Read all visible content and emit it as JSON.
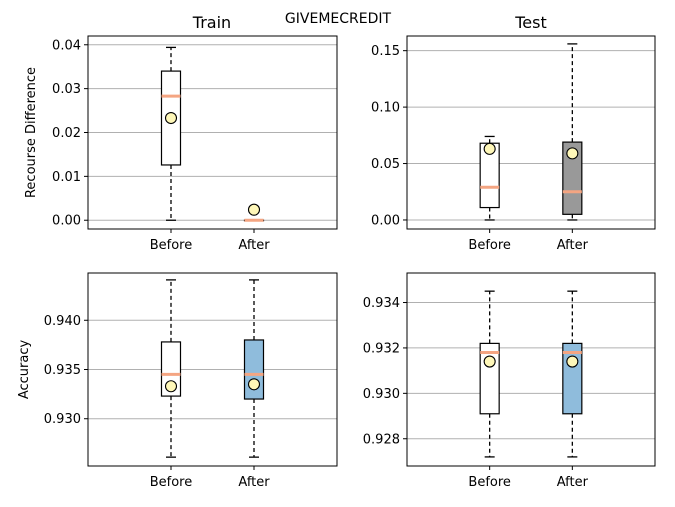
{
  "figure": {
    "suptitle": "GIVEMECREDIT",
    "col_titles": [
      "Train",
      "Test"
    ],
    "row_ylabels": [
      "Recourse Difference",
      "Accuracy"
    ]
  },
  "colors": {
    "median": "#f4a582",
    "mean_marker_fill": "#fef7b8",
    "grid": "#b0b0b0",
    "box_default": "#ffffff",
    "box_blue": "#8fbcdc",
    "box_gray": "#999999"
  },
  "chart_data": [
    {
      "type": "box",
      "title": "Train",
      "ylabel": "Recourse Difference",
      "xlabel": "",
      "ylim": [
        -0.002,
        0.042
      ],
      "yticks": [
        0.0,
        0.01,
        0.02,
        0.03,
        0.04
      ],
      "ytick_labels": [
        "0.00",
        "0.01",
        "0.02",
        "0.03",
        "0.04"
      ],
      "grid": "y",
      "categories": [
        "Before",
        "After"
      ],
      "boxes": [
        {
          "whislo": 0.0,
          "q1": 0.0126,
          "med": 0.0283,
          "q3": 0.034,
          "whishi": 0.0394,
          "mean": 0.0233,
          "fill": "#ffffff"
        },
        {
          "whislo": 0.0,
          "q1": 0.0,
          "med": 0.0,
          "q3": 0.0,
          "whishi": 0.0,
          "mean": 0.0024,
          "fill": "#ffffff"
        }
      ]
    },
    {
      "type": "box",
      "title": "Test",
      "ylabel": "",
      "xlabel": "",
      "ylim": [
        -0.008,
        0.163
      ],
      "yticks": [
        0.0,
        0.05,
        0.1,
        0.15
      ],
      "ytick_labels": [
        "0.00",
        "0.05",
        "0.10",
        "0.15"
      ],
      "grid": "y",
      "categories": [
        "Before",
        "After"
      ],
      "boxes": [
        {
          "whislo": 0.0,
          "q1": 0.011,
          "med": 0.029,
          "q3": 0.068,
          "whishi": 0.074,
          "mean": 0.063,
          "fill": "#ffffff"
        },
        {
          "whislo": 0.0,
          "q1": 0.005,
          "med": 0.025,
          "q3": 0.069,
          "whishi": 0.156,
          "mean": 0.059,
          "fill": "#999999"
        }
      ]
    },
    {
      "type": "box",
      "title": "",
      "ylabel": "Accuracy",
      "xlabel": "",
      "ylim": [
        0.9252,
        0.9448
      ],
      "yticks": [
        0.93,
        0.935,
        0.94
      ],
      "ytick_labels": [
        "0.930",
        "0.935",
        "0.940"
      ],
      "grid": "y",
      "categories": [
        "Before",
        "After"
      ],
      "boxes": [
        {
          "whislo": 0.9261,
          "q1": 0.9323,
          "med": 0.9345,
          "q3": 0.9378,
          "whishi": 0.9441,
          "mean": 0.9333,
          "fill": "#ffffff"
        },
        {
          "whislo": 0.9261,
          "q1": 0.932,
          "med": 0.9345,
          "q3": 0.938,
          "whishi": 0.9441,
          "mean": 0.9335,
          "fill": "#8fbcdc"
        }
      ]
    },
    {
      "type": "box",
      "title": "",
      "ylabel": "",
      "xlabel": "",
      "ylim": [
        0.9268,
        0.9353
      ],
      "yticks": [
        0.928,
        0.93,
        0.932,
        0.934
      ],
      "ytick_labels": [
        "0.928",
        "0.930",
        "0.932",
        "0.934"
      ],
      "grid": "y",
      "categories": [
        "Before",
        "After"
      ],
      "boxes": [
        {
          "whislo": 0.9272,
          "q1": 0.9291,
          "med": 0.9318,
          "q3": 0.9322,
          "whishi": 0.9345,
          "mean": 0.9314,
          "fill": "#ffffff"
        },
        {
          "whislo": 0.9272,
          "q1": 0.9291,
          "med": 0.9318,
          "q3": 0.9322,
          "whishi": 0.9345,
          "mean": 0.9314,
          "fill": "#8fbcdc"
        }
      ]
    }
  ]
}
